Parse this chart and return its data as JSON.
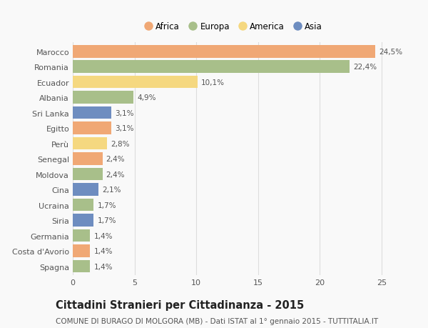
{
  "categories": [
    "Marocco",
    "Romania",
    "Ecuador",
    "Albania",
    "Sri Lanka",
    "Egitto",
    "Perù",
    "Senegal",
    "Moldova",
    "Cina",
    "Ucraina",
    "Siria",
    "Germania",
    "Costa d'Avorio",
    "Spagna"
  ],
  "values": [
    24.5,
    22.4,
    10.1,
    4.9,
    3.1,
    3.1,
    2.8,
    2.4,
    2.4,
    2.1,
    1.7,
    1.7,
    1.4,
    1.4,
    1.4
  ],
  "labels": [
    "24,5%",
    "22,4%",
    "10,1%",
    "4,9%",
    "3,1%",
    "3,1%",
    "2,8%",
    "2,4%",
    "2,4%",
    "2,1%",
    "1,7%",
    "1,7%",
    "1,4%",
    "1,4%",
    "1,4%"
  ],
  "continents": [
    "Africa",
    "Europa",
    "America",
    "Europa",
    "Asia",
    "Africa",
    "America",
    "Africa",
    "Europa",
    "Asia",
    "Europa",
    "Asia",
    "Europa",
    "Africa",
    "Europa"
  ],
  "colors": {
    "Africa": "#F0A875",
    "Europa": "#A8BF8A",
    "America": "#F5D880",
    "Asia": "#6E8DC0"
  },
  "legend_order": [
    "Africa",
    "Europa",
    "America",
    "Asia"
  ],
  "title": "Cittadini Stranieri per Cittadinanza - 2015",
  "subtitle": "COMUNE DI BURAGO DI MOLGORA (MB) - Dati ISTAT al 1° gennaio 2015 - TUTTITALIA.IT",
  "xlim": [
    0,
    26
  ],
  "xticks": [
    0,
    5,
    10,
    15,
    20,
    25
  ],
  "background_color": "#f9f9f9",
  "grid_color": "#dddddd",
  "bar_height": 0.82,
  "title_fontsize": 10.5,
  "subtitle_fontsize": 7.5,
  "label_fontsize": 7.5,
  "tick_fontsize": 8,
  "legend_fontsize": 8.5
}
